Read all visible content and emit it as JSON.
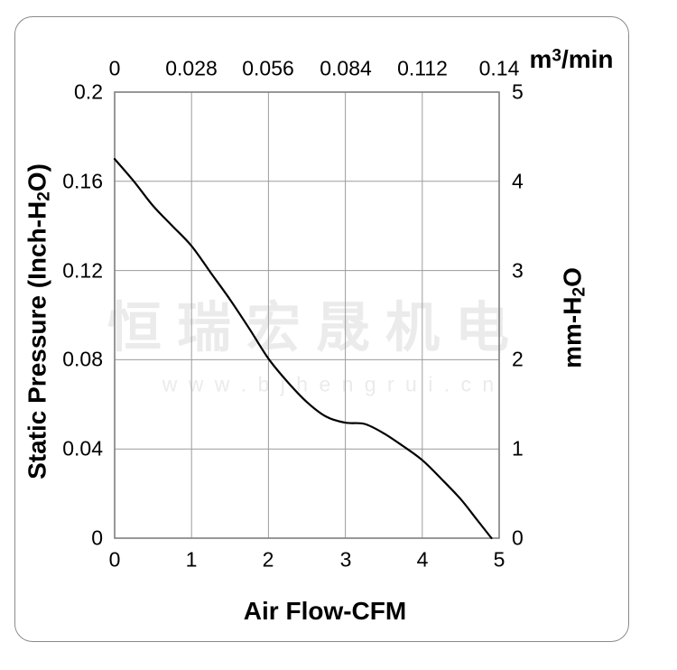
{
  "watermark": {
    "line1": "恒瑞宏晟机电",
    "line2": "w w w . b j h e n g r u i . c n",
    "color": "#ebebeb"
  },
  "chart_data": {
    "type": "line",
    "title": "",
    "grid": true,
    "legend": "none",
    "colors": {
      "curve": "#000000",
      "gridline": "#9c9c9c",
      "plot_border": "#7f7f7f"
    },
    "axes": {
      "bottom": {
        "label": "Air Flow-CFM",
        "range": [
          0,
          5
        ],
        "ticks": [
          "0",
          "1",
          "2",
          "3",
          "4",
          "5"
        ]
      },
      "top": {
        "label_parts": [
          {
            "text": "m"
          },
          {
            "text": "3",
            "script": "sup"
          },
          {
            "text": "/min"
          }
        ],
        "range": [
          0,
          0.14
        ],
        "ticks": [
          "0",
          "0.028",
          "0.056",
          "0.084",
          "0.112",
          "0.14"
        ]
      },
      "left": {
        "label_parts": [
          {
            "text": "Static Pressure (Inch-H"
          },
          {
            "text": "2",
            "script": "sub"
          },
          {
            "text": "O)"
          }
        ],
        "range": [
          0,
          0.2
        ],
        "ticks": [
          "0",
          "0.04",
          "0.08",
          "0.12",
          "0.16",
          "0.2"
        ]
      },
      "right": {
        "label_parts": [
          {
            "text": "mm-H"
          },
          {
            "text": "2",
            "script": "sub"
          },
          {
            "text": "O"
          }
        ],
        "range": [
          0,
          5
        ],
        "ticks": [
          "0",
          "1",
          "2",
          "3",
          "4",
          "5"
        ]
      }
    },
    "series": [
      {
        "name": "static-pressure-vs-airflow",
        "x_unit": "CFM",
        "y_unit": "Inch-H2O",
        "points": [
          [
            0,
            0.17
          ],
          [
            0.25,
            0.16
          ],
          [
            0.5,
            0.149
          ],
          [
            0.75,
            0.14
          ],
          [
            1,
            0.131
          ],
          [
            1.25,
            0.119
          ],
          [
            1.5,
            0.107
          ],
          [
            1.75,
            0.094
          ],
          [
            2,
            0.0805
          ],
          [
            2.25,
            0.07
          ],
          [
            2.5,
            0.061
          ],
          [
            2.75,
            0.0545
          ],
          [
            3,
            0.0518
          ],
          [
            3.25,
            0.0512
          ],
          [
            3.5,
            0.047
          ],
          [
            3.75,
            0.0413
          ],
          [
            4,
            0.035
          ],
          [
            4.25,
            0.0265
          ],
          [
            4.5,
            0.0175
          ],
          [
            4.7,
            0.0088
          ],
          [
            4.9,
            0
          ]
        ]
      }
    ]
  }
}
